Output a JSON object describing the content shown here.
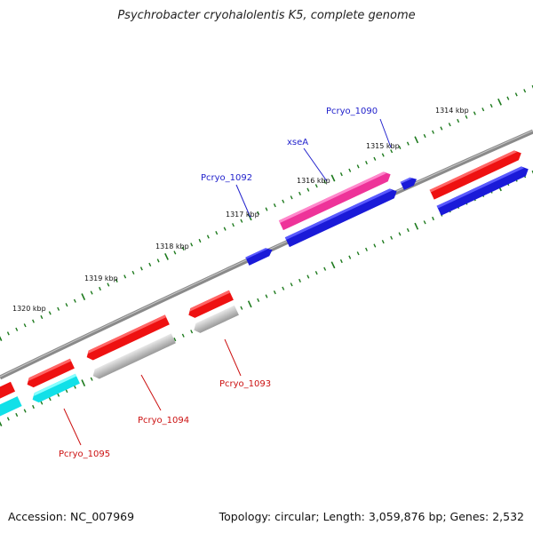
{
  "title": "Psychrobacter cryohalolentis K5, complete genome",
  "footer": {
    "accession": "Accession: NC_007969",
    "summary": "Topology: circular; Length: 3,059,876 bp; Genes: 2,532"
  },
  "colors": {
    "backbone": "#8a8a8a",
    "ticks": "#1d7a1d",
    "gene_red": "#ee1111",
    "gene_blue": "#1a1ad8",
    "gene_magenta": "#ee3399",
    "gene_cyan": "#11e0e8",
    "gene_grey": "#bbbbbb",
    "label_blue": "#2222cc",
    "label_red": "#cc1111"
  },
  "scale_labels": [
    "1314 kbp",
    "1315 kbp",
    "1316 kbp",
    "1317 kbp",
    "1318 kbp",
    "1319 kbp",
    "1320 kbp"
  ],
  "gene_labels": [
    {
      "text": "Pcryo_1090",
      "color": "blue"
    },
    {
      "text": "xseA",
      "color": "blue"
    },
    {
      "text": "Pcryo_1092",
      "color": "blue"
    },
    {
      "text": "Pcryo_1093",
      "color": "red"
    },
    {
      "text": "Pcryo_1094",
      "color": "red"
    },
    {
      "text": "Pcryo_1095",
      "color": "red"
    }
  ]
}
